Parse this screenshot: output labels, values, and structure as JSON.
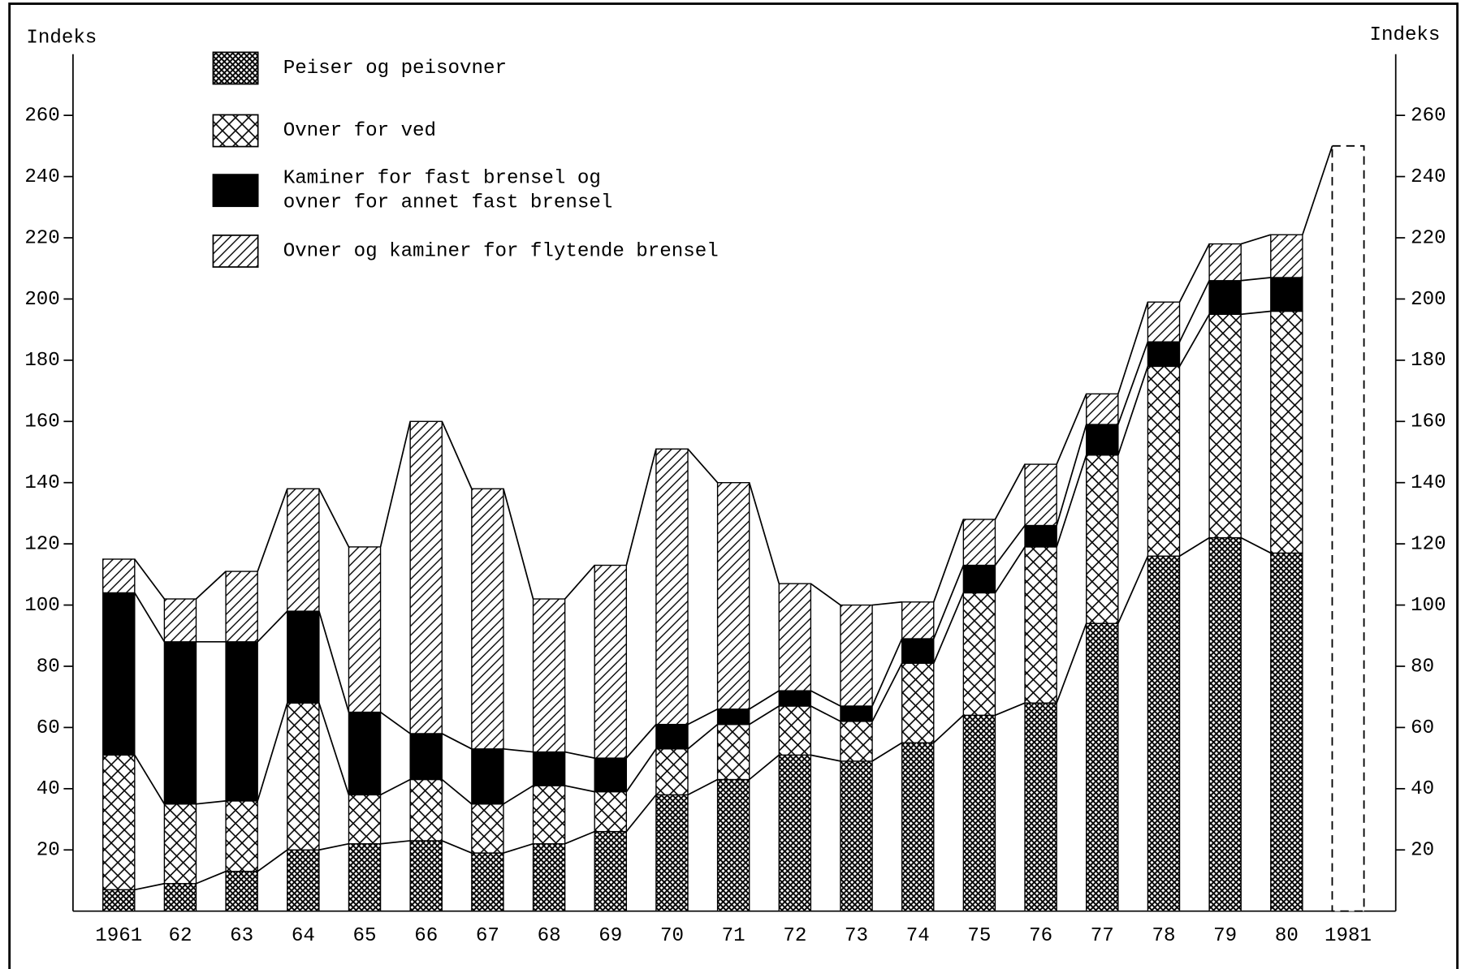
{
  "chart_data": {
    "type": "stacked-bar",
    "ylabel": "Indeks",
    "y2label": "Indeks",
    "categories": [
      "1961",
      "62",
      "63",
      "64",
      "65",
      "66",
      "67",
      "68",
      "69",
      "70",
      "71",
      "72",
      "73",
      "74",
      "75",
      "76",
      "77",
      "78",
      "79",
      "80",
      "1981"
    ],
    "series": [
      {
        "name": "Peiser og peisovner",
        "color": "#000000",
        "pattern": "fine-crosshatch",
        "values": [
          7,
          9,
          13,
          20,
          22,
          23,
          19,
          22,
          26,
          38,
          43,
          51,
          49,
          55,
          64,
          68,
          94,
          116,
          122,
          117,
          null
        ]
      },
      {
        "name": "Ovner for ved",
        "color": "#000000",
        "pattern": "crosshatch",
        "values": [
          44,
          26,
          23,
          48,
          16,
          20,
          16,
          19,
          13,
          15,
          18,
          16,
          13,
          26,
          40,
          51,
          55,
          62,
          73,
          79,
          null
        ]
      },
      {
        "name": "Kaminer for fast brensel og\novner for annet fast brensel",
        "color": "#000000",
        "pattern": "solid",
        "values": [
          53,
          53,
          52,
          30,
          27,
          15,
          18,
          11,
          11,
          8,
          5,
          5,
          5,
          8,
          9,
          7,
          10,
          8,
          11,
          11,
          null
        ]
      },
      {
        "name": "Ovner og kaminer for flytende brensel",
        "color": "#000000",
        "pattern": "diagonal",
        "values": [
          11,
          14,
          23,
          40,
          54,
          102,
          85,
          50,
          63,
          90,
          74,
          35,
          33,
          12,
          15,
          20,
          10,
          13,
          12,
          14,
          null
        ]
      },
      {
        "color": "#000000",
        "pattern": "dashed-outline",
        "values": [
          null,
          null,
          null,
          null,
          null,
          null,
          null,
          null,
          null,
          null,
          null,
          null,
          null,
          null,
          null,
          null,
          null,
          null,
          null,
          null,
          250
        ]
      }
    ],
    "ylim": [
      0,
      280
    ],
    "yticks": [
      20,
      40,
      60,
      80,
      100,
      120,
      140,
      160,
      180,
      200,
      220,
      240,
      260
    ],
    "y2lim": [
      0,
      280
    ],
    "y2ticks": [
      20,
      40,
      60,
      80,
      100,
      120,
      140,
      160,
      180,
      200,
      220,
      240,
      260
    ],
    "grid": false,
    "legend": "top-left"
  }
}
